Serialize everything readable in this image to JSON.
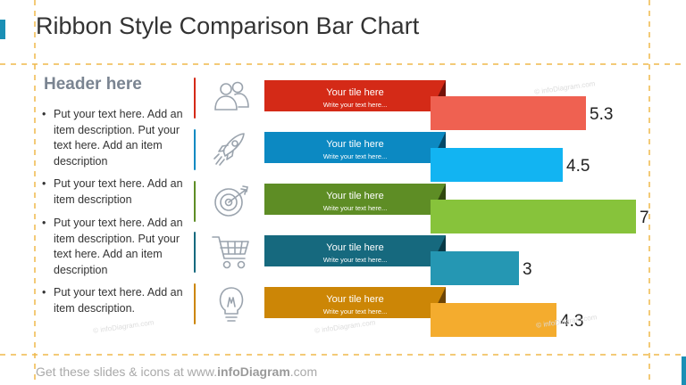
{
  "title": "Ribbon Style Comparison Bar Chart",
  "sidebar": {
    "header": "Header here",
    "bullets": [
      "Put your text here. Add an item description. Put your text here. Add an item description",
      "Put your text here. Add an item description",
      "Put your text here. Add an item description. Put your text here. Add an item description",
      "Put your text here. Add an item description."
    ]
  },
  "icons": [
    "users-icon",
    "rocket-icon",
    "target-icon",
    "shopping-cart-icon",
    "lightbulb-icon"
  ],
  "footer": {
    "prefix": "Get these slides & icons at www.",
    "brand": "infoDiagram",
    "suffix": ".com"
  },
  "watermark": "© infoDiagram.com",
  "chart_data": {
    "type": "bar",
    "orientation": "horizontal",
    "title": "",
    "categories": [
      "Your tile here",
      "Your tile here",
      "Your tile here",
      "Your tile here",
      "Your tile here"
    ],
    "subtitles": [
      "Write your text here...",
      "Write your text here...",
      "Write your text here...",
      "Write your text here...",
      "Write your text here..."
    ],
    "values": [
      5.3,
      4.5,
      7,
      3,
      4.3
    ],
    "value_labels": [
      "5.3",
      "4.5",
      "7",
      "3",
      "4.3"
    ],
    "xlim": [
      0,
      7
    ],
    "grid": false,
    "legend": "none",
    "colors": {
      "ribbon": [
        "#d42a17",
        "#0c89c2",
        "#5e8d25",
        "#16697e",
        "#cc8606"
      ],
      "bar": [
        "#ef6151",
        "#12b4f2",
        "#87c33b",
        "#2597b3",
        "#f4ac2e"
      ],
      "fold": [
        "#741109",
        "#034868",
        "#30480f",
        "#083a47",
        "#6e4504"
      ],
      "separator": [
        "#d42a17",
        "#0c89c2",
        "#5e8d25",
        "#16697e",
        "#cc8606"
      ]
    }
  }
}
